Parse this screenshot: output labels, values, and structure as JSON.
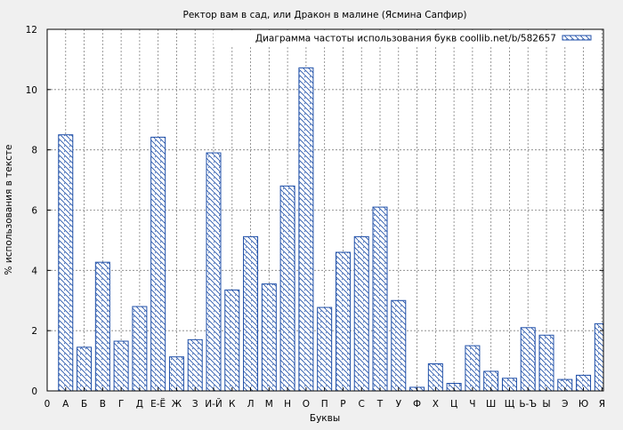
{
  "chart_data": {
    "type": "bar",
    "title": "Ректор вам в сад, или Дракон в малине (Ясмина Сапфир)",
    "xlabel": "Буквы",
    "ylabel": "% использования в тексте",
    "legend_label": "Диаграмма частоты использования букв coollib.net/b/582657",
    "legend_position": "top-right",
    "grid": true,
    "ylim": [
      0,
      12
    ],
    "yticks": [
      "0",
      "2",
      "4",
      "6",
      "8",
      "10",
      "12"
    ],
    "x_origin_label": "0",
    "categories": [
      "А",
      "Б",
      "В",
      "Г",
      "Д",
      "Е-Ё",
      "Ж",
      "З",
      "И-Й",
      "К",
      "Л",
      "М",
      "Н",
      "О",
      "П",
      "Р",
      "С",
      "Т",
      "У",
      "Ф",
      "Х",
      "Ц",
      "Ч",
      "Ш",
      "Щ",
      "Ь-Ъ",
      "Ы",
      "Э",
      "Ю",
      "Я"
    ],
    "values": [
      8.5,
      1.45,
      4.27,
      1.65,
      2.8,
      8.42,
      1.13,
      1.7,
      7.9,
      3.35,
      5.12,
      3.55,
      6.8,
      10.72,
      2.77,
      4.6,
      5.12,
      6.1,
      3.0,
      0.12,
      0.9,
      0.25,
      1.5,
      0.65,
      0.42,
      2.1,
      1.85,
      0.38,
      0.52,
      2.23
    ],
    "colors": {
      "bar_stroke": "#1f4fa8",
      "hatch": "#1f4fa8",
      "bar_fill": "#ffffff",
      "grid": "#808080",
      "plot_bg": "#ffffff"
    }
  }
}
